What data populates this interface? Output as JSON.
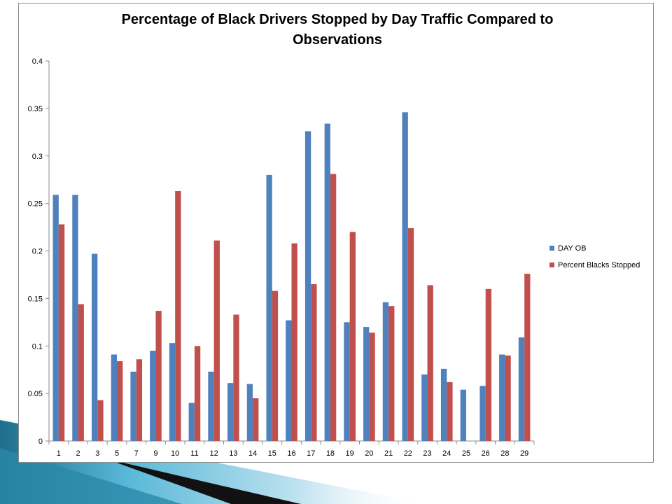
{
  "chart_data": {
    "type": "bar",
    "title_lines": [
      "Percentage of Black Drivers Stopped by Day Traffic  Compared to",
      "Observations"
    ],
    "categories": [
      "1",
      "2",
      "3",
      "5",
      "7",
      "9",
      "10",
      "11",
      "12",
      "13",
      "14",
      "15",
      "16",
      "17",
      "18",
      "19",
      "20",
      "21",
      "22",
      "23",
      "24",
      "25",
      "26",
      "28",
      "29"
    ],
    "series": [
      {
        "name": "DAY OB",
        "color": "#4f81bd",
        "values": [
          0.259,
          0.259,
          0.197,
          0.091,
          0.073,
          0.095,
          0.103,
          0.04,
          0.073,
          0.061,
          0.06,
          0.28,
          0.127,
          0.326,
          0.334,
          0.125,
          0.12,
          0.146,
          0.346,
          0.07,
          0.076,
          0.054,
          0.058,
          0.091,
          0.109
        ]
      },
      {
        "name": "Percent Blacks Stopped",
        "color": "#c0504d",
        "values": [
          0.228,
          0.144,
          0.043,
          0.084,
          0.086,
          0.137,
          0.263,
          0.1,
          0.211,
          0.133,
          0.045,
          0.158,
          0.208,
          0.165,
          0.281,
          0.22,
          0.114,
          0.142,
          0.224,
          0.164,
          0.062,
          0,
          0.16,
          0.09,
          0.176
        ]
      }
    ],
    "yticks": [
      "0",
      "0.05",
      "0.1",
      "0.15",
      "0.2",
      "0.25",
      "0.3",
      "0.35",
      "0.4"
    ],
    "ylim": [
      0,
      0.4
    ],
    "grid": false,
    "legend": "right"
  }
}
